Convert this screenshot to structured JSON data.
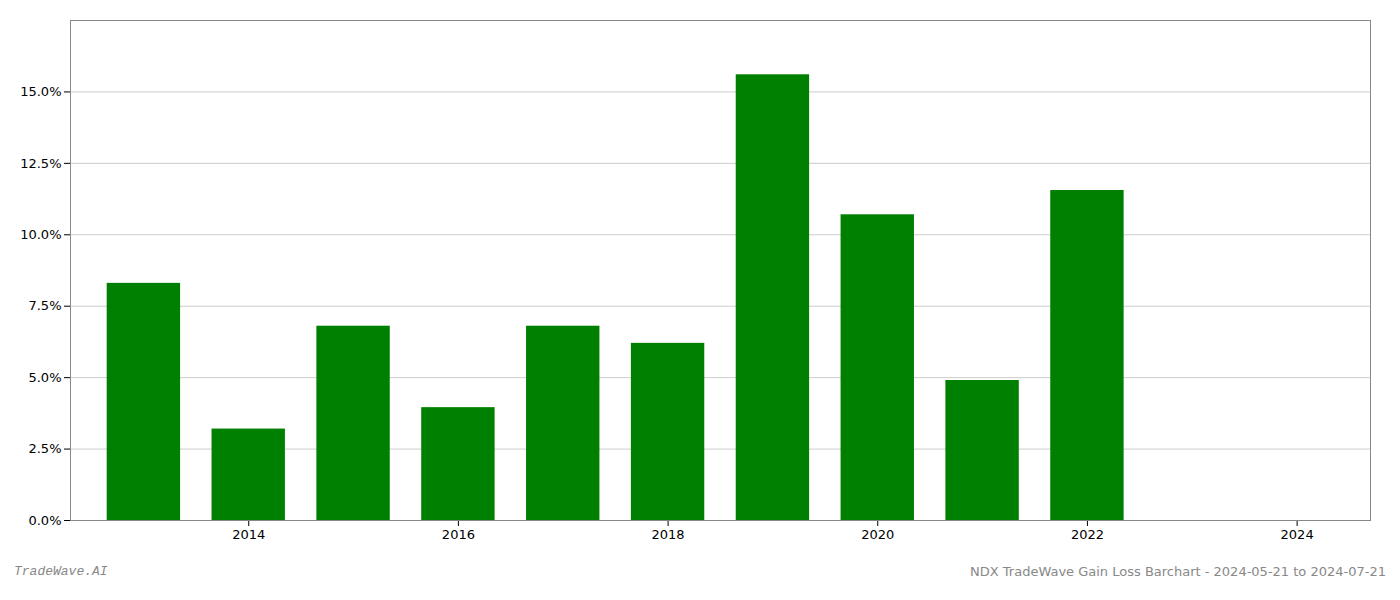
{
  "chart_data": {
    "type": "bar",
    "x": [
      2013,
      2014,
      2015,
      2016,
      2017,
      2018,
      2019,
      2020,
      2021,
      2022,
      2023
    ],
    "values": [
      0.083,
      0.032,
      0.068,
      0.0395,
      0.068,
      0.062,
      0.156,
      0.107,
      0.049,
      0.1155,
      0.0
    ],
    "color": "#008000",
    "xlim": [
      2012.3,
      2024.7
    ],
    "xticks": [
      2014,
      2016,
      2018,
      2020,
      2022,
      2024
    ],
    "ylim": [
      0,
      0.175
    ],
    "yticks": [
      {
        "value": 0.0,
        "label": "0.0%"
      },
      {
        "value": 0.025,
        "label": "2.5%"
      },
      {
        "value": 0.05,
        "label": "5.0%"
      },
      {
        "value": 0.075,
        "label": "7.5%"
      },
      {
        "value": 0.1,
        "label": "10.0%"
      },
      {
        "value": 0.125,
        "label": "12.5%"
      },
      {
        "value": 0.15,
        "label": "15.0%"
      }
    ],
    "grid": true,
    "annotations": [
      "TradeWave.AI",
      "NDX TradeWave Gain Loss Barchart - 2024-05-21 to 2024-07-21"
    ]
  }
}
